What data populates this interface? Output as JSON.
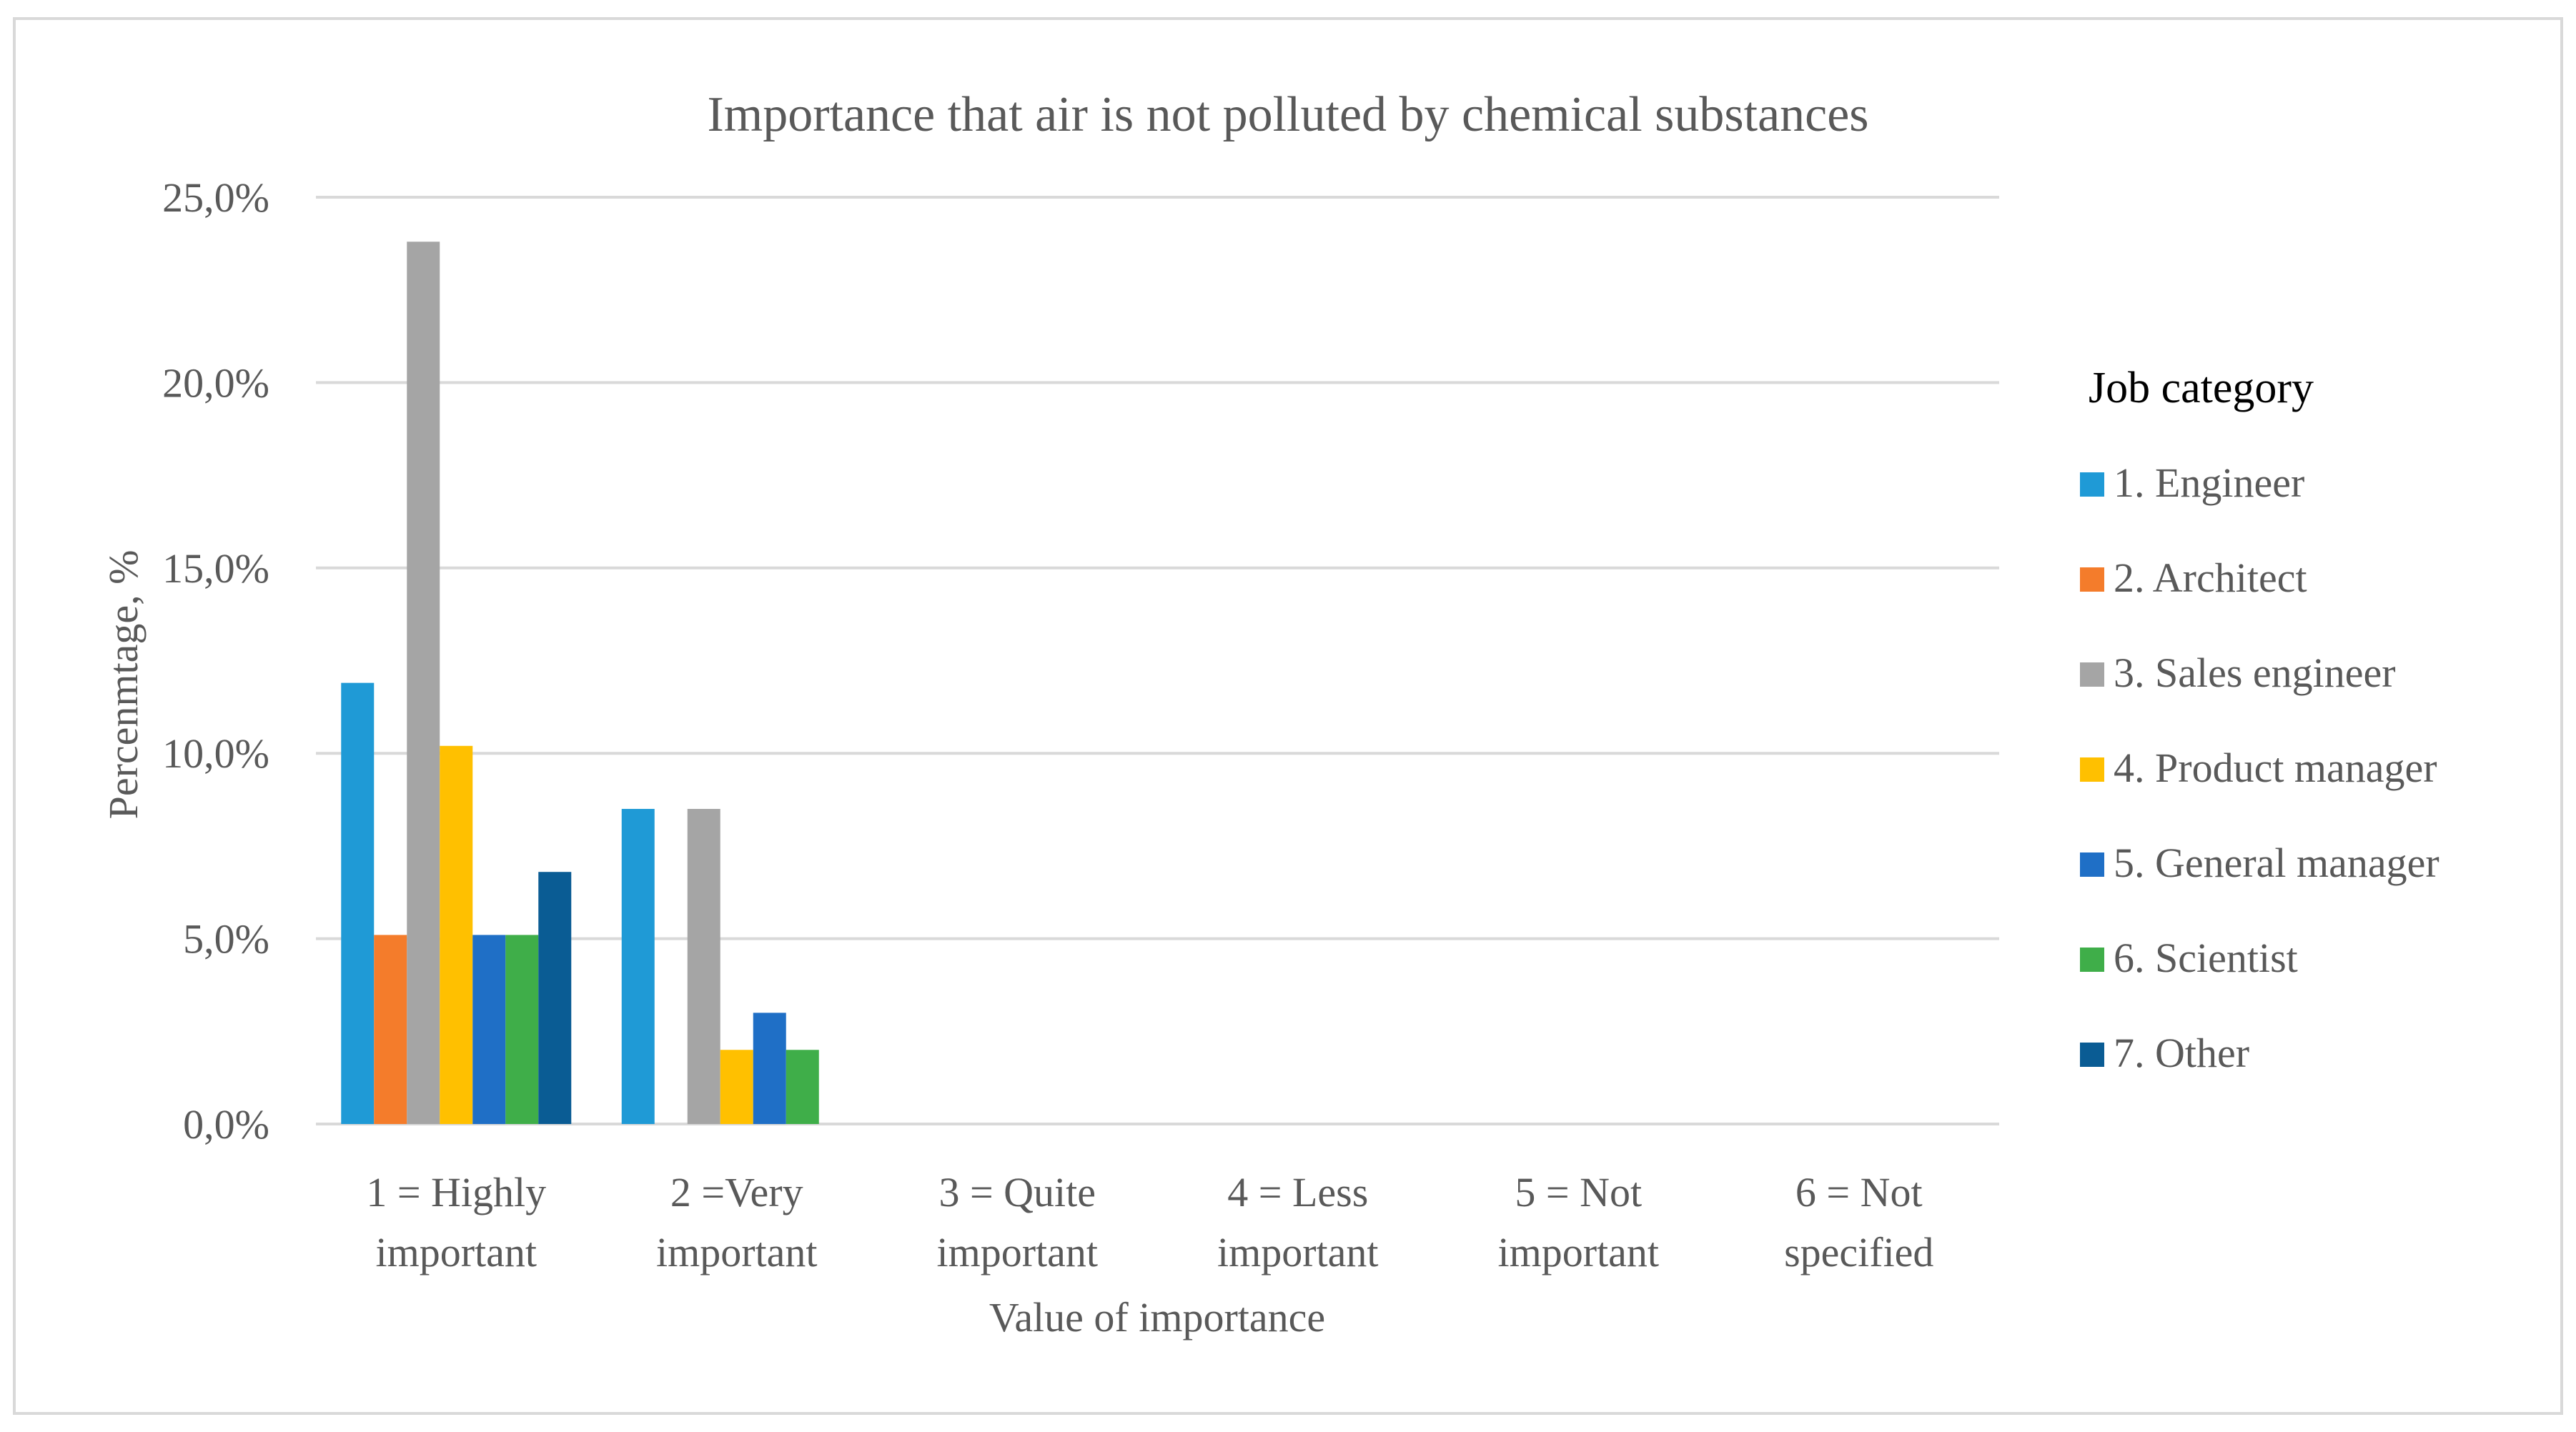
{
  "chart_data": {
    "type": "bar",
    "title": "Importance that air is not polluted by chemical substances",
    "xlabel": "Value of importance",
    "ylabel": "Percenmtage, %",
    "categories": [
      [
        "1 = Highly",
        "important"
      ],
      [
        "2 =Very",
        "important"
      ],
      [
        "3 = Quite",
        "important"
      ],
      [
        "4 = Less",
        "important"
      ],
      [
        "5 = Not",
        "important"
      ],
      [
        "6 = Not",
        "specified"
      ]
    ],
    "ylim": [
      0,
      25
    ],
    "yticks": [
      "0,0%",
      "5,0%",
      "10,0%",
      "15,0%",
      "20,0%",
      "25,0%"
    ],
    "grid": true,
    "legend": {
      "title": "Job category",
      "position": "right"
    },
    "series": [
      {
        "name": "1. Engineer",
        "color": "#1f9ad6",
        "values": [
          11.9,
          8.5,
          0,
          0,
          0,
          0
        ]
      },
      {
        "name": "2. Architect",
        "color": "#f47c2b",
        "values": [
          5.1,
          0,
          0,
          0,
          0,
          0
        ]
      },
      {
        "name": "3. Sales engineer",
        "color": "#a5a5a5",
        "values": [
          23.8,
          8.5,
          0,
          0,
          0,
          0
        ]
      },
      {
        "name": "4. Product manager",
        "color": "#ffc000",
        "values": [
          10.2,
          2.0,
          0,
          0,
          0,
          0
        ]
      },
      {
        "name": "5. General manager",
        "color": "#1f6fc6",
        "values": [
          5.1,
          3.0,
          0,
          0,
          0,
          0
        ]
      },
      {
        "name": "6. Scientist",
        "color": "#3fae49",
        "values": [
          5.1,
          2.0,
          0,
          0,
          0,
          0
        ]
      },
      {
        "name": "7. Other",
        "color": "#0a5c94",
        "values": [
          6.8,
          0,
          0,
          0,
          0,
          0
        ]
      }
    ]
  }
}
